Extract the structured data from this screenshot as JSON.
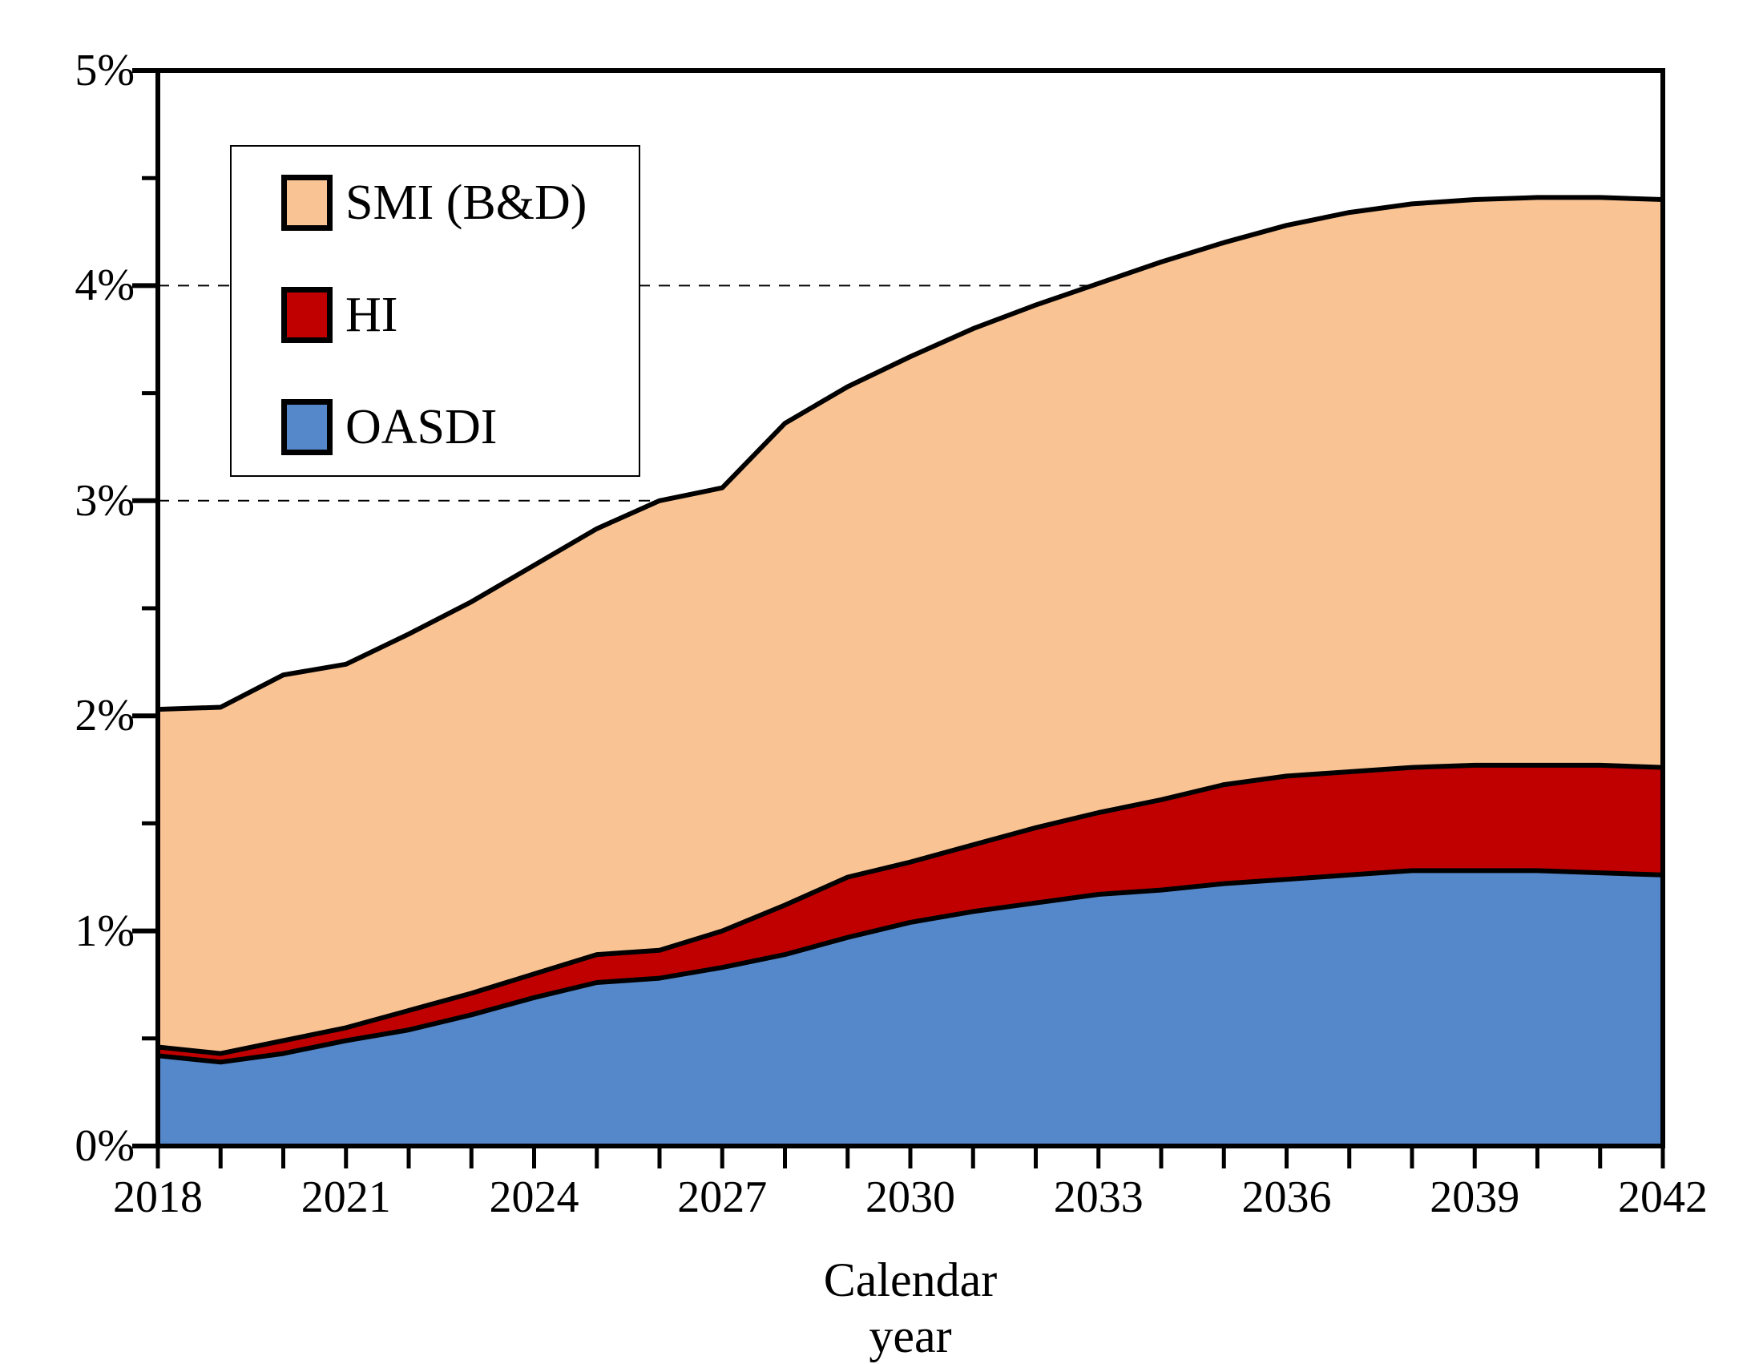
{
  "chart_data": {
    "type": "area",
    "stacked": true,
    "title": "",
    "xlabel": "Calendar year",
    "ylabel": "",
    "ylim": [
      0,
      5
    ],
    "y_tick_labels": [
      "0%",
      "1%",
      "2%",
      "3%",
      "4%",
      "5%"
    ],
    "y_minor_ticks": [
      0.5,
      1.5,
      2.5,
      3.5,
      4.5
    ],
    "grid": "dashed horizontal gridlines at 1%,2%,3%,4%, drawn behind the filled areas",
    "x": [
      2018,
      2019,
      2020,
      2021,
      2022,
      2023,
      2024,
      2025,
      2026,
      2027,
      2028,
      2029,
      2030,
      2031,
      2032,
      2033,
      2034,
      2035,
      2036,
      2037,
      2038,
      2039,
      2040,
      2041,
      2042
    ],
    "x_labeled_ticks": [
      2018,
      2021,
      2024,
      2027,
      2030,
      2033,
      2036,
      2039,
      2042
    ],
    "series": [
      {
        "name": "OASDI",
        "color": "#5588CB",
        "values": [
          0.42,
          0.39,
          0.43,
          0.49,
          0.54,
          0.61,
          0.69,
          0.76,
          0.78,
          0.83,
          0.89,
          0.97,
          1.04,
          1.09,
          1.13,
          1.17,
          1.19,
          1.22,
          1.24,
          1.26,
          1.28,
          1.28,
          1.28,
          1.27,
          1.26
        ]
      },
      {
        "name": "HI",
        "color": "#C00000",
        "values": [
          0.04,
          0.04,
          0.06,
          0.06,
          0.09,
          0.1,
          0.11,
          0.13,
          0.13,
          0.17,
          0.23,
          0.28,
          0.28,
          0.31,
          0.35,
          0.38,
          0.42,
          0.46,
          0.48,
          0.48,
          0.48,
          0.49,
          0.49,
          0.5,
          0.5
        ]
      },
      {
        "name": "SMI (B&D)",
        "color": "#FAC393",
        "values": [
          1.57,
          1.61,
          1.7,
          1.69,
          1.75,
          1.82,
          1.9,
          1.98,
          2.09,
          2.06,
          2.24,
          2.28,
          2.35,
          2.4,
          2.43,
          2.46,
          2.5,
          2.52,
          2.56,
          2.6,
          2.62,
          2.63,
          2.64,
          2.64,
          2.64
        ]
      }
    ],
    "stacked_totals_percent": [
      2.03,
      2.04,
      2.19,
      2.24,
      2.38,
      2.53,
      2.7,
      2.87,
      3.0,
      3.06,
      3.36,
      3.53,
      3.67,
      3.8,
      3.91,
      4.01,
      4.11,
      4.2,
      4.28,
      4.34,
      4.38,
      4.4,
      4.41,
      4.41,
      4.4
    ],
    "legend": {
      "position": "top-left",
      "entries": [
        {
          "label": "SMI (B&D)",
          "color": "#FAC393"
        },
        {
          "label": "HI",
          "color": "#C00000"
        },
        {
          "label": "OASDI",
          "color": "#5588CB"
        }
      ]
    },
    "line_color": "#000000",
    "background": "#FFFFFF"
  }
}
